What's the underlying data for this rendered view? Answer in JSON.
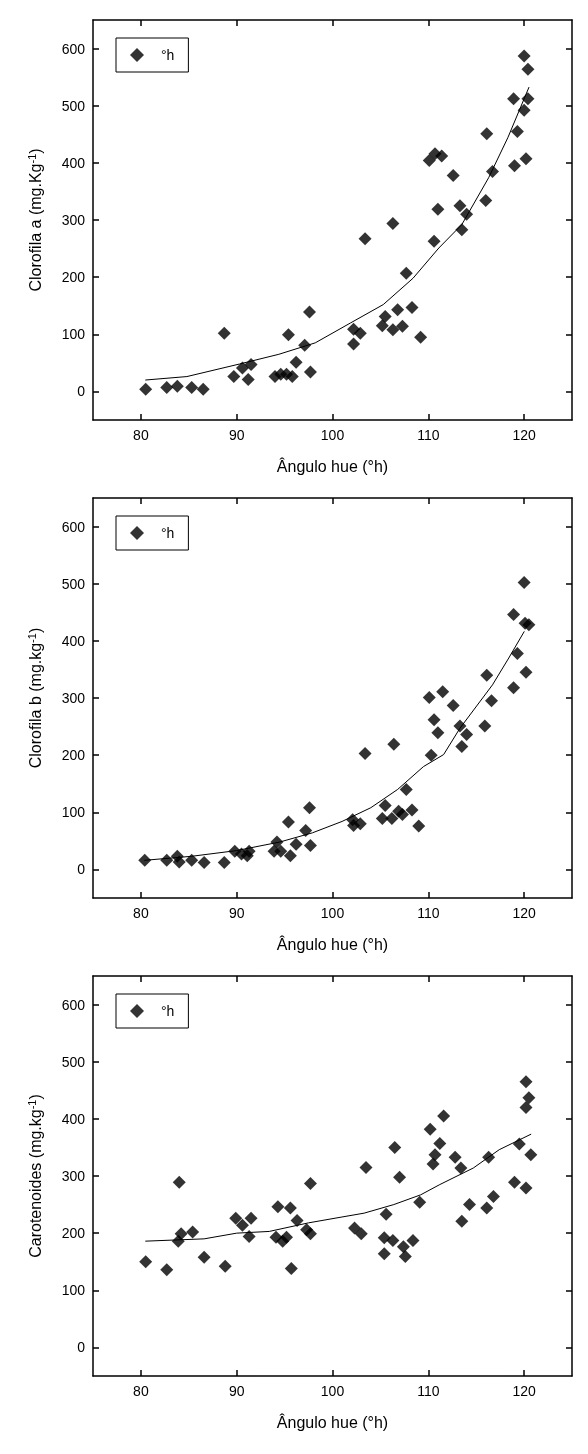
{
  "chart_data": [
    {
      "type": "scatter",
      "xlabel": "Ângulo hue (°h)",
      "ylabel": "Clorofila a (mg.Kg$^{-1}$)",
      "xlim": [
        75,
        125
      ],
      "xticks": [
        80,
        90,
        100,
        110,
        120
      ],
      "ylim": [
        -50,
        650
      ],
      "yticks": [
        0,
        100,
        200,
        300,
        400,
        500,
        600
      ],
      "legend": "top left",
      "grid": false,
      "series": [
        {
          "name": "°h",
          "color": "#000000",
          "marker": "diamond",
          "x": [
            80.5,
            82.7,
            83.8,
            85.3,
            86.5,
            88.7,
            89.7,
            90.6,
            91.2,
            91.5,
            94.0,
            94.6,
            95.2,
            95.8,
            95.4,
            96.2,
            97.1,
            97.6,
            97.7,
            102.2,
            102.2,
            102.9,
            103.4,
            105.2,
            105.5,
            106.3,
            106.3,
            106.8,
            107.3,
            107.7,
            108.3,
            109.2,
            110.1,
            110.6,
            110.7,
            111.0,
            111.4,
            112.6,
            113.3,
            113.5,
            114.0,
            116.0,
            116.1,
            116.7,
            118.9,
            119.0,
            119.3,
            120.0,
            120.0,
            120.2,
            120.4,
            120.4
          ],
          "values": [
            4,
            7,
            9,
            7,
            4,
            102,
            26,
            41,
            21,
            47,
            26,
            30,
            30,
            26,
            99,
            51,
            81,
            139,
            34,
            109,
            83,
            102,
            267,
            115,
            131,
            108,
            294,
            143,
            114,
            207,
            147,
            95,
            404,
            263,
            416,
            319,
            412,
            378,
            325,
            283,
            310,
            334,
            451,
            385,
            512,
            395,
            455,
            587,
            492,
            407,
            512,
            564
          ]
        },
        {
          "type": "line",
          "color": "#000000",
          "marker": "none",
          "x": [
            80.5,
            84.8,
            90.3,
            94.4,
            98.2,
            101.9,
            105.3,
            108.4,
            111.1,
            113.5,
            116.3,
            118.3,
            120.5
          ],
          "values": [
            20,
            26,
            48,
            65,
            85,
            120,
            152,
            198,
            251,
            292,
            374,
            444,
            532
          ]
        }
      ]
    },
    {
      "type": "scatter",
      "xlabel": "Ângulo hue (°h)",
      "ylabel": "Clorofila b (mg.kg$^{-1}$)",
      "xlim": [
        75,
        125
      ],
      "xticks": [
        80,
        90,
        100,
        110,
        120
      ],
      "ylim": [
        -50,
        650
      ],
      "yticks": [
        0,
        100,
        200,
        300,
        400,
        500,
        600
      ],
      "legend": "top left",
      "grid": false,
      "series": [
        {
          "name": "°h",
          "color": "#000000",
          "marker": "diamond",
          "x": [
            80.4,
            82.7,
            83.8,
            84.0,
            85.3,
            86.6,
            88.7,
            89.8,
            90.5,
            91.3,
            91.1,
            93.9,
            94.2,
            94.6,
            95.6,
            95.4,
            96.2,
            97.2,
            97.6,
            97.7,
            102.1,
            102.2,
            102.9,
            103.4,
            105.2,
            105.5,
            106.2,
            106.4,
            106.9,
            107.3,
            107.7,
            108.3,
            109.0,
            110.1,
            110.3,
            110.6,
            111.0,
            111.5,
            112.6,
            113.3,
            113.5,
            114.0,
            115.9,
            116.1,
            116.6,
            118.9,
            118.9,
            119.3,
            120.0,
            120.1,
            120.2,
            120.5
          ],
          "values": [
            16,
            16,
            23,
            13,
            16,
            12,
            12,
            32,
            27,
            32,
            24,
            32,
            48,
            32,
            24,
            83,
            44,
            68,
            108,
            42,
            87,
            77,
            80,
            203,
            89,
            112,
            89,
            219,
            102,
            96,
            140,
            104,
            76,
            301,
            200,
            262,
            239,
            311,
            287,
            251,
            215,
            236,
            251,
            340,
            295,
            318,
            446,
            378,
            502,
            431,
            345,
            428
          ]
        },
        {
          "type": "line",
          "color": "#000000",
          "marker": "none",
          "x": [
            80.4,
            85.3,
            90.0,
            94.5,
            97.9,
            101.0,
            104.0,
            106.8,
            109.5,
            111.6,
            113.3,
            116.7,
            118.4,
            120.0
          ],
          "values": [
            16,
            23,
            33,
            48,
            64,
            84,
            108,
            140,
            180,
            201,
            247,
            323,
            370,
            416
          ]
        }
      ]
    },
    {
      "type": "scatter",
      "xlabel": "Ângulo hue (°h)",
      "ylabel": "Carotenoides (mg.kg$^{-1}$)",
      "xlim": [
        75,
        125
      ],
      "xticks": [
        80,
        90,
        100,
        110,
        120
      ],
      "ylim": [
        -50,
        650
      ],
      "yticks": [
        0,
        100,
        200,
        300,
        400,
        500,
        600
      ],
      "legend": "top left",
      "grid": false,
      "series": [
        {
          "name": "°h",
          "color": "#000000",
          "marker": "diamond",
          "x": [
            80.5,
            82.7,
            84.0,
            84.2,
            83.9,
            85.4,
            86.6,
            88.8,
            89.9,
            90.6,
            91.3,
            91.5,
            94.1,
            94.3,
            94.8,
            95.2,
            95.6,
            95.7,
            96.3,
            97.3,
            97.7,
            97.7,
            102.3,
            103.0,
            103.5,
            105.4,
            105.4,
            105.6,
            106.3,
            106.5,
            107.0,
            107.4,
            107.6,
            108.4,
            109.1,
            110.2,
            110.5,
            110.7,
            111.2,
            111.6,
            112.8,
            113.4,
            113.5,
            114.3,
            116.1,
            116.3,
            116.8,
            119.0,
            119.5,
            120.2,
            120.2,
            120.5,
            120.2,
            120.7
          ],
          "values": [
            150,
            136,
            289,
            199,
            186,
            202,
            158,
            142,
            226,
            214,
            194,
            226,
            193,
            246,
            186,
            193,
            244,
            138,
            222,
            206,
            287,
            199,
            209,
            199,
            315,
            192,
            164,
            233,
            187,
            350,
            298,
            176,
            159,
            187,
            254,
            382,
            321,
            337,
            357,
            405,
            333,
            314,
            221,
            250,
            244,
            333,
            264,
            289,
            356,
            465,
            420,
            437,
            279,
            337
          ]
        },
        {
          "type": "line",
          "color": "#000000",
          "marker": "none",
          "x": [
            80.5,
            86.6,
            90.0,
            93.4,
            97.5,
            100.9,
            103.3,
            106.4,
            109.2,
            111.2,
            114.7,
            117.4,
            120.7
          ],
          "values": [
            186,
            190,
            200,
            203,
            218,
            228,
            235,
            250,
            267,
            285,
            314,
            346,
            373
          ]
        }
      ]
    }
  ]
}
